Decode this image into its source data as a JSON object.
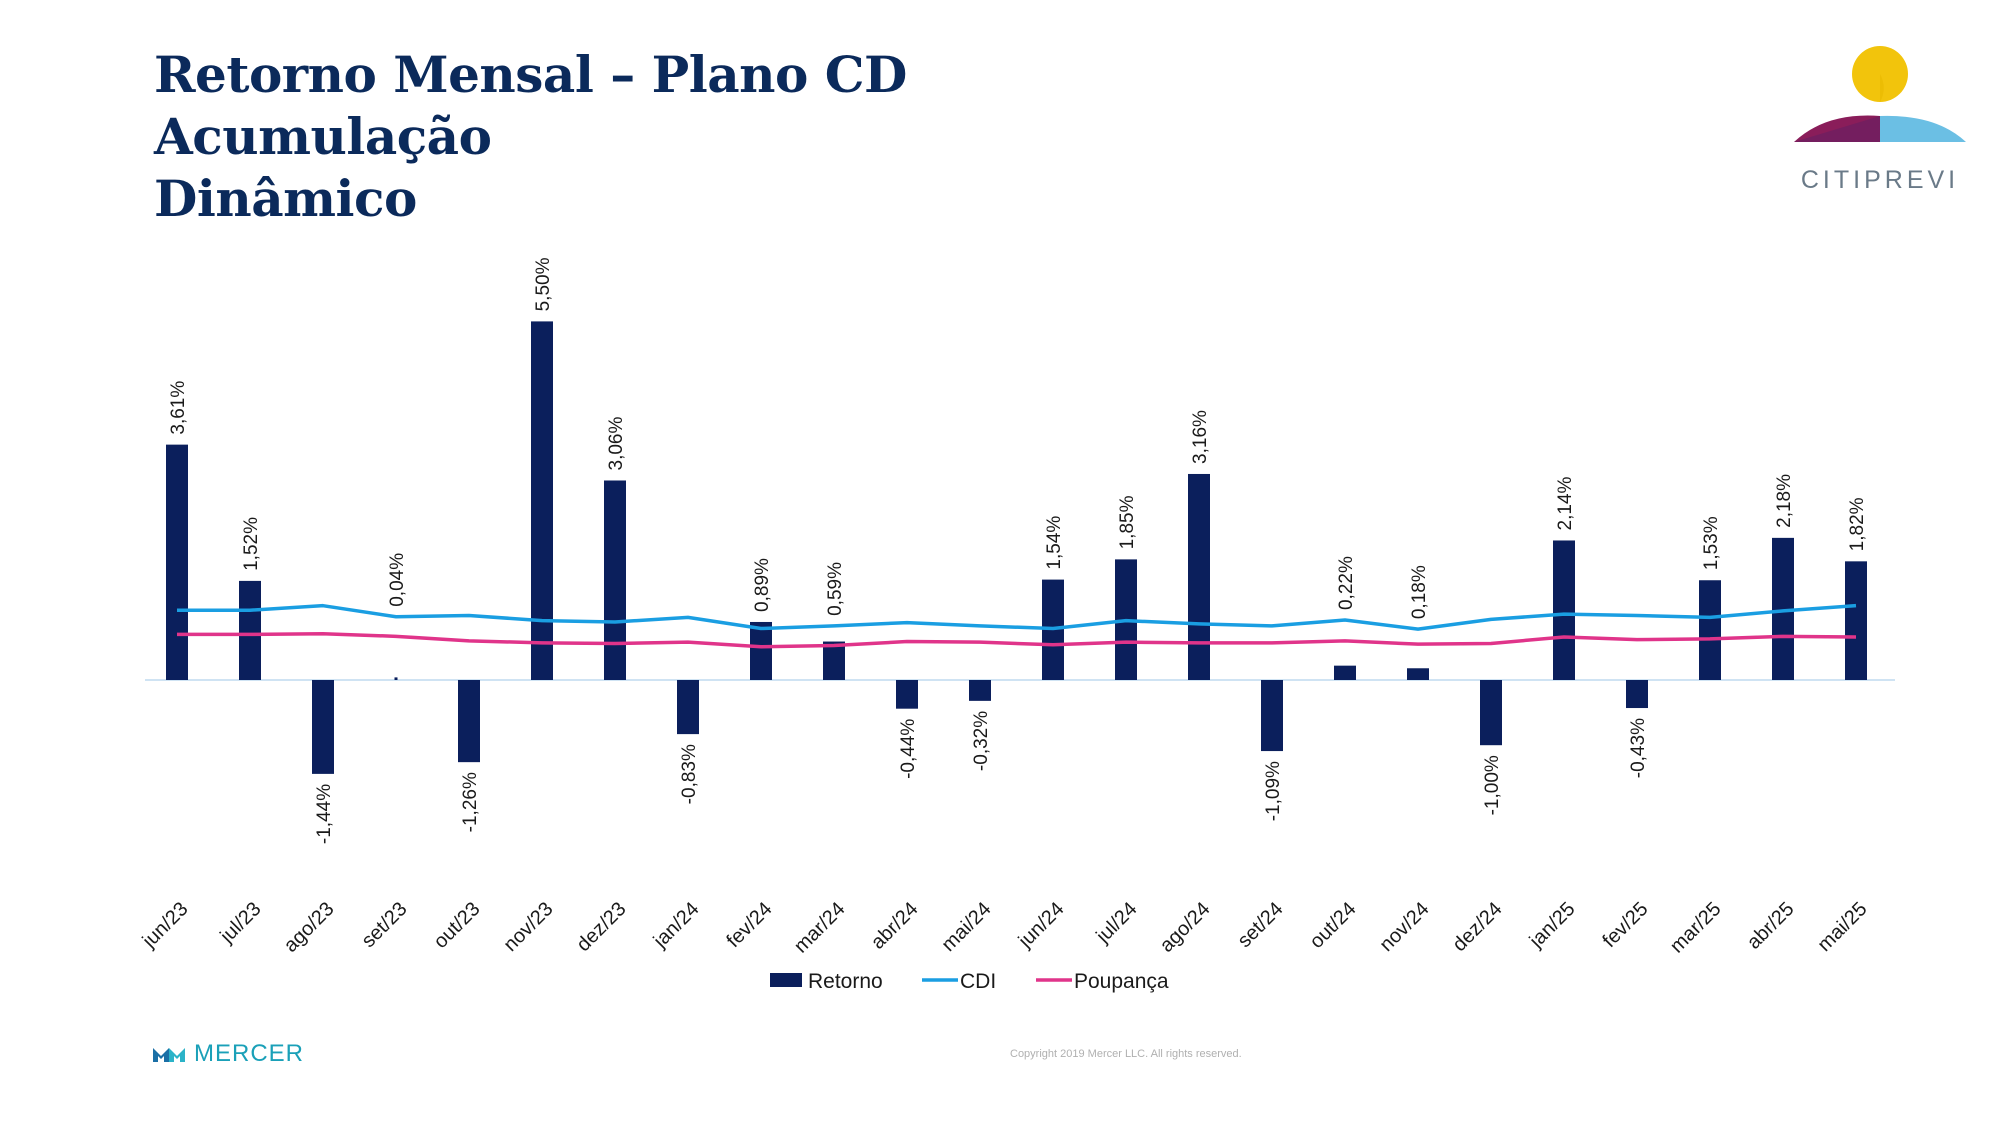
{
  "header": {
    "title_line1": "Retorno Mensal – Plano CD Acumulação",
    "title_line2": "Dinâmico"
  },
  "logo": {
    "text": "CITIPREVI"
  },
  "footer": {
    "brand": "MERCER",
    "copyright": "Copyright 2019 Mercer LLC. All rights reserved."
  },
  "colors": {
    "retorno": "#0b1f5c",
    "cdi": "#1a9ee2",
    "poupanca": "#e0348a",
    "title": "#0b2a5b"
  },
  "chart_data": {
    "type": "bar",
    "categories": [
      "jun/23",
      "jul/23",
      "ago/23",
      "set/23",
      "out/23",
      "nov/23",
      "dez/23",
      "jan/24",
      "fev/24",
      "mar/24",
      "abr/24",
      "mai/24",
      "jun/24",
      "jul/24",
      "ago/24",
      "set/24",
      "out/24",
      "nov/24",
      "dez/24",
      "jan/25",
      "fev/25",
      "mar/25",
      "abr/25",
      "mai/25"
    ],
    "series": [
      {
        "name": "Retorno",
        "type": "bar",
        "values": [
          3.61,
          1.52,
          -1.44,
          0.04,
          -1.26,
          5.5,
          3.06,
          -0.83,
          0.89,
          0.59,
          -0.44,
          -0.32,
          1.54,
          1.85,
          3.16,
          -1.09,
          0.22,
          0.18,
          -1.0,
          2.14,
          -0.43,
          1.53,
          2.18,
          1.82
        ],
        "labels": [
          "3,61%",
          "1,52%",
          "-1,44%",
          "0,04%",
          "-1,26%",
          "5,50%",
          "3,06%",
          "-0,83%",
          "0,89%",
          "0,59%",
          "-0,44%",
          "-0,32%",
          "1,54%",
          "1,85%",
          "3,16%",
          "-1,09%",
          "0,22%",
          "0,18%",
          "-1,00%",
          "2,14%",
          "-0,43%",
          "1,53%",
          "2,18%",
          "1,82%"
        ]
      },
      {
        "name": "CDI",
        "type": "line",
        "values": [
          1.07,
          1.07,
          1.14,
          0.97,
          0.99,
          0.91,
          0.89,
          0.96,
          0.79,
          0.83,
          0.88,
          0.83,
          0.79,
          0.91,
          0.86,
          0.83,
          0.92,
          0.78,
          0.93,
          1.01,
          0.99,
          0.96,
          1.06,
          1.14
        ]
      },
      {
        "name": "Poupança",
        "type": "line",
        "values": [
          0.7,
          0.7,
          0.71,
          0.67,
          0.6,
          0.57,
          0.56,
          0.58,
          0.51,
          0.53,
          0.59,
          0.58,
          0.54,
          0.58,
          0.57,
          0.57,
          0.6,
          0.55,
          0.56,
          0.66,
          0.62,
          0.63,
          0.67,
          0.66
        ]
      }
    ],
    "ylim": [
      -3.2,
      6.0
    ],
    "grid": false,
    "legend": "bottom-center"
  }
}
